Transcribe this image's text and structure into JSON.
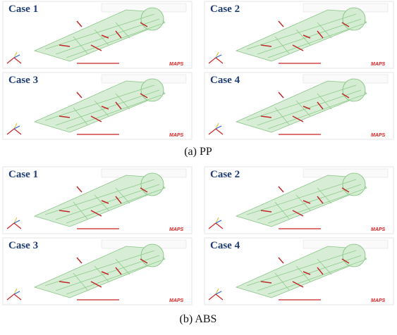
{
  "figures": [
    {
      "caption": "(a) PP",
      "panels": [
        {
          "label": "Case 1",
          "logo": "MAPS"
        },
        {
          "label": "Case 2",
          "logo": "MAPS"
        },
        {
          "label": "Case 3",
          "logo": "MAPS"
        },
        {
          "label": "Case 4",
          "logo": "MAPS"
        }
      ]
    },
    {
      "caption": "(b) ABS",
      "panels": [
        {
          "label": "Case 1",
          "logo": "MAPS"
        },
        {
          "label": "Case 2",
          "logo": "MAPS"
        },
        {
          "label": "Case 3",
          "logo": "MAPS"
        },
        {
          "label": "Case 4",
          "logo": "MAPS"
        }
      ]
    }
  ]
}
